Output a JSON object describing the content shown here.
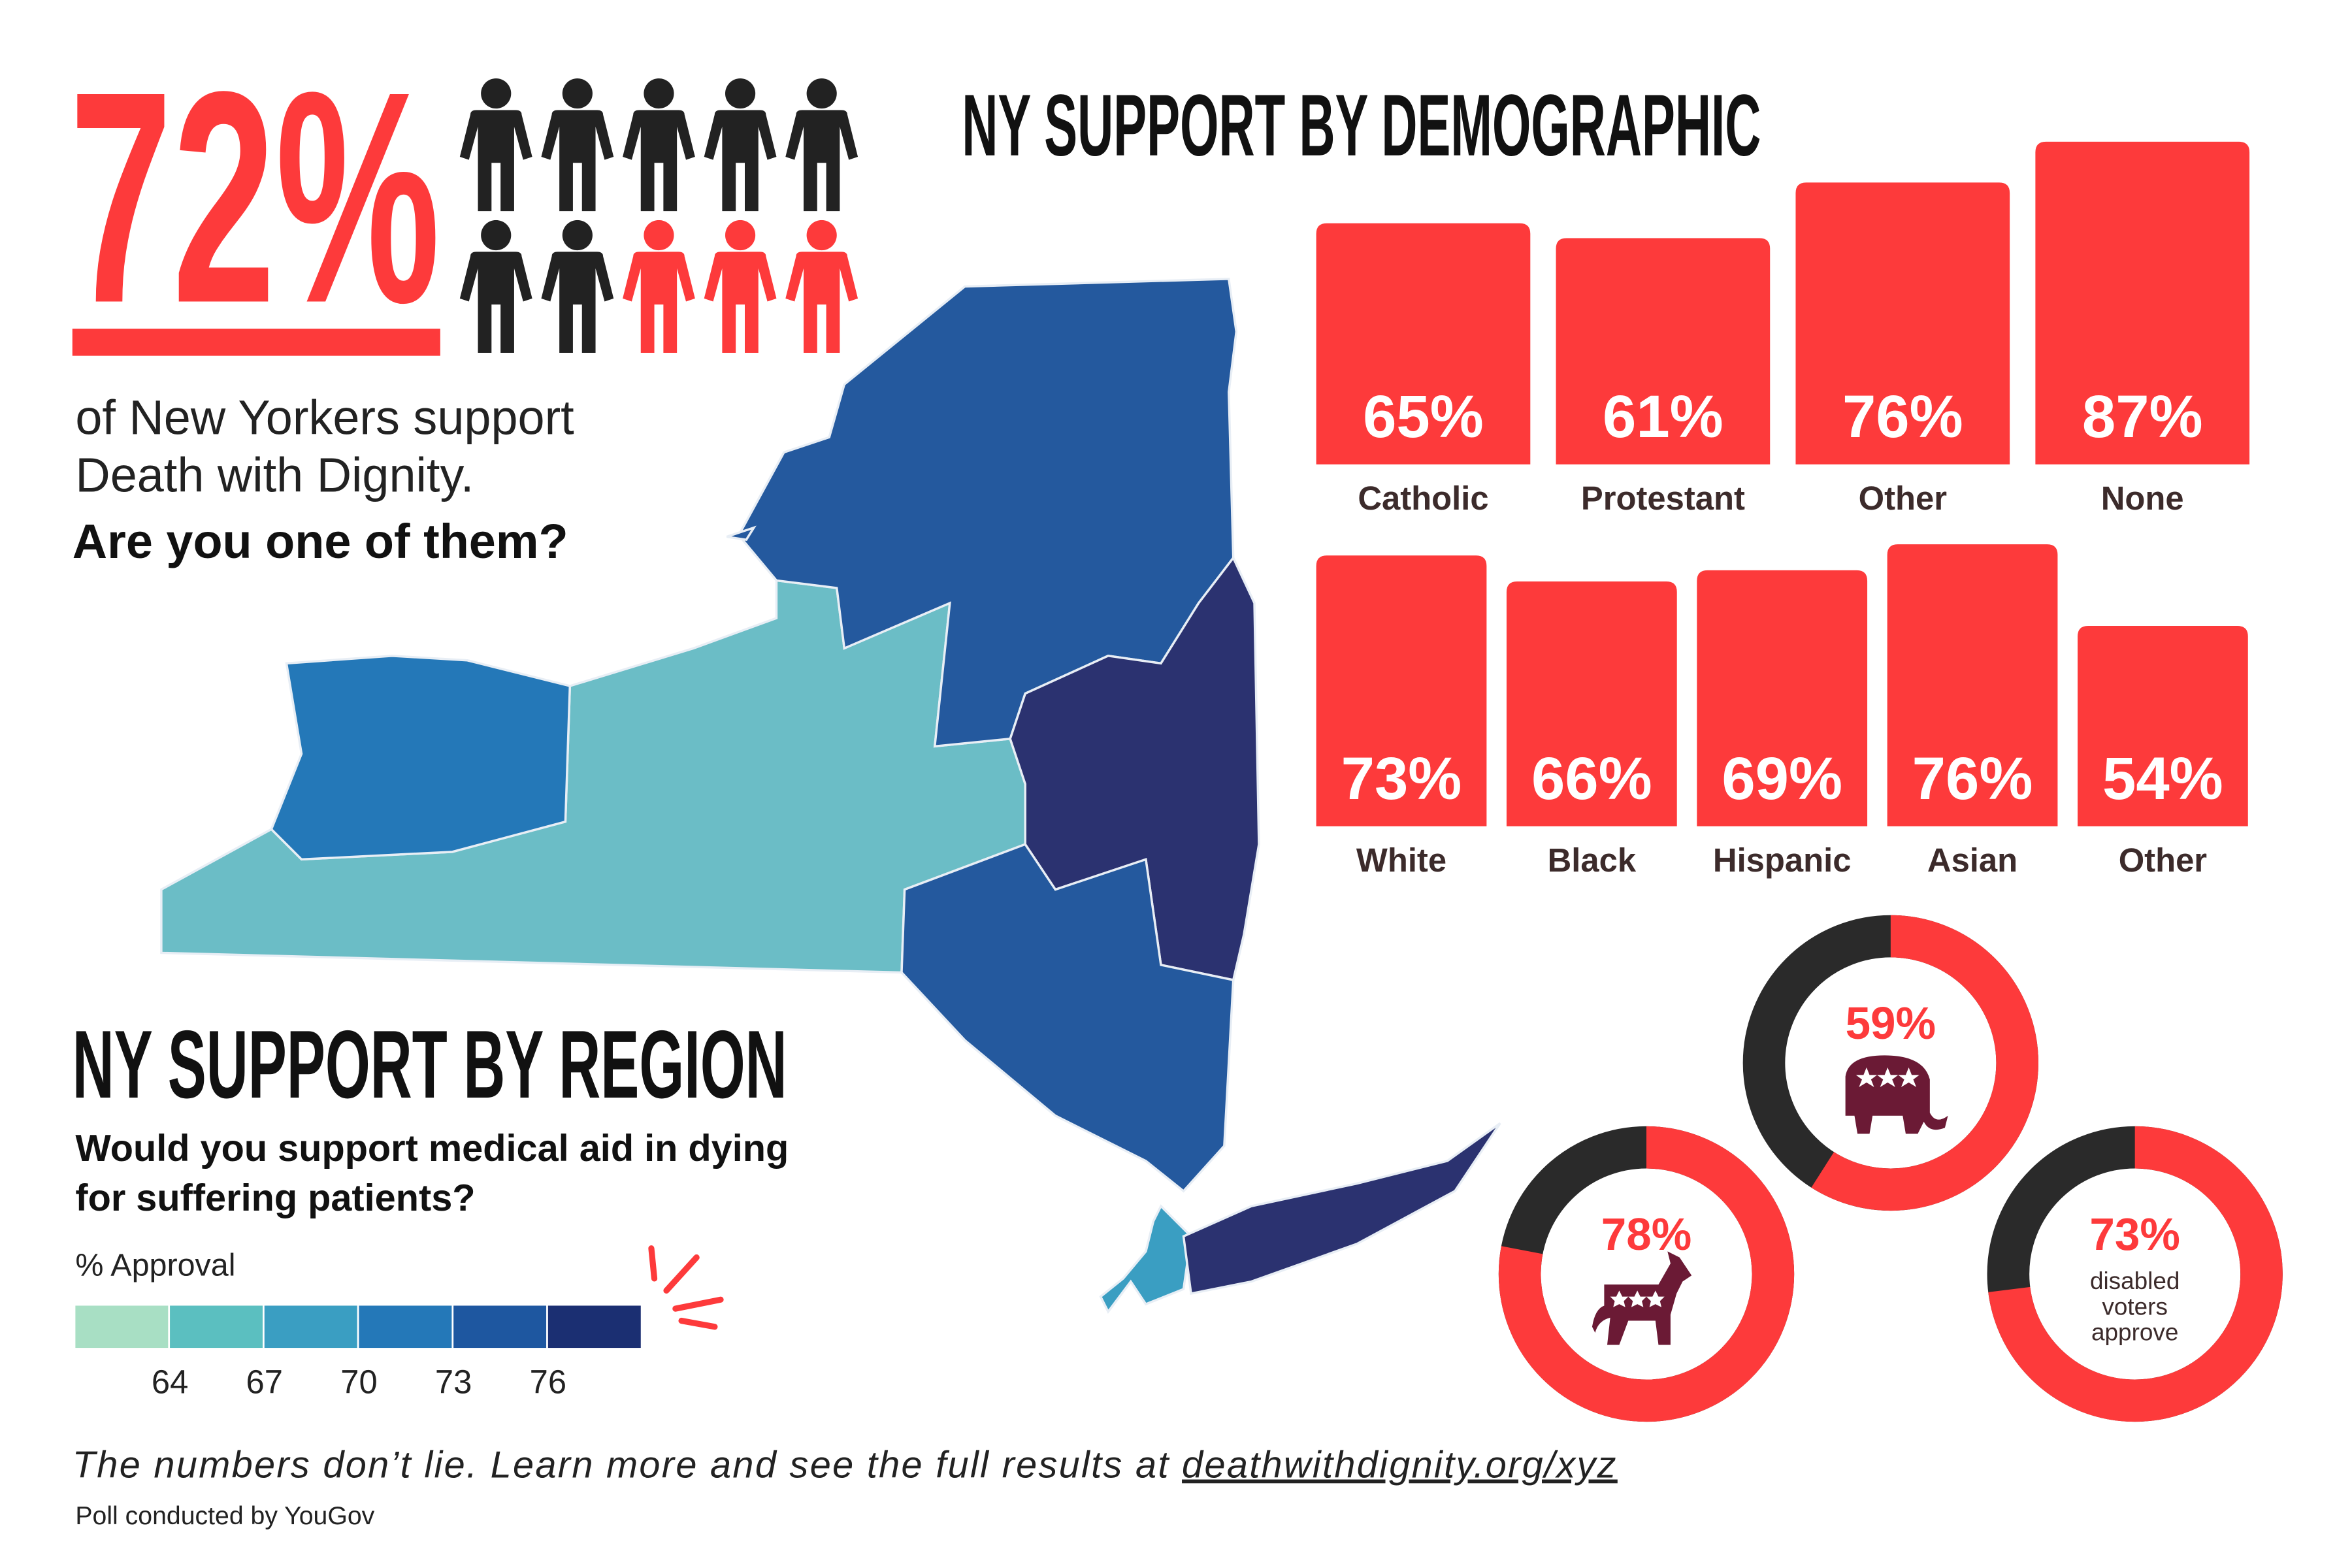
{
  "headline": {
    "percent": "72%",
    "lines": [
      "of New Yorkers support",
      "Death with Dignity."
    ],
    "question": "Are you one of them?"
  },
  "demographic": {
    "title": "NY SUPPORT BY DEMOGRAPHIC",
    "religion": [
      {
        "label": "Catholic",
        "value": 65,
        "value_label": "65%"
      },
      {
        "label": "Protestant",
        "value": 61,
        "value_label": "61%"
      },
      {
        "label": "Other",
        "value": 76,
        "value_label": "76%"
      },
      {
        "label": "None",
        "value": 87,
        "value_label": "87%"
      }
    ],
    "race": [
      {
        "label": "White",
        "value": 73,
        "value_label": "73%"
      },
      {
        "label": "Black",
        "value": 66,
        "value_label": "66%"
      },
      {
        "label": "Hispanic",
        "value": 69,
        "value_label": "69%"
      },
      {
        "label": "Asian",
        "value": 76,
        "value_label": "76%"
      },
      {
        "label": "Other",
        "value": 54,
        "value_label": "54%"
      }
    ],
    "color": "#fd3a3b"
  },
  "politics": {
    "republican": {
      "value": 59,
      "value_label": "59%"
    },
    "democrat": {
      "value": 78,
      "value_label": "78%"
    },
    "disabled": {
      "value": 73,
      "value_label": "73%",
      "caption": [
        "disabled",
        "voters",
        "approve"
      ]
    },
    "color": "#fd3a3b",
    "rest_color": "#2a2a2a"
  },
  "region": {
    "title": "NY SUPPORT BY REGION",
    "question": [
      "Would you support medical aid in dying",
      "for suffering patients?"
    ],
    "legend": {
      "title": "% Approval",
      "colors": [
        "#a8dfc4",
        "#5bbfc0",
        "#3a9ec2",
        "#2478b8",
        "#1e57a0",
        "#1b2f72"
      ],
      "ticks": [
        64,
        67,
        70,
        73,
        76
      ]
    }
  },
  "footer": {
    "text": "The numbers don’t lie. Learn more and see the full results at ",
    "link": "deathwithdignity.org/xyz",
    "credit": "Poll conducted by YouGov"
  }
}
